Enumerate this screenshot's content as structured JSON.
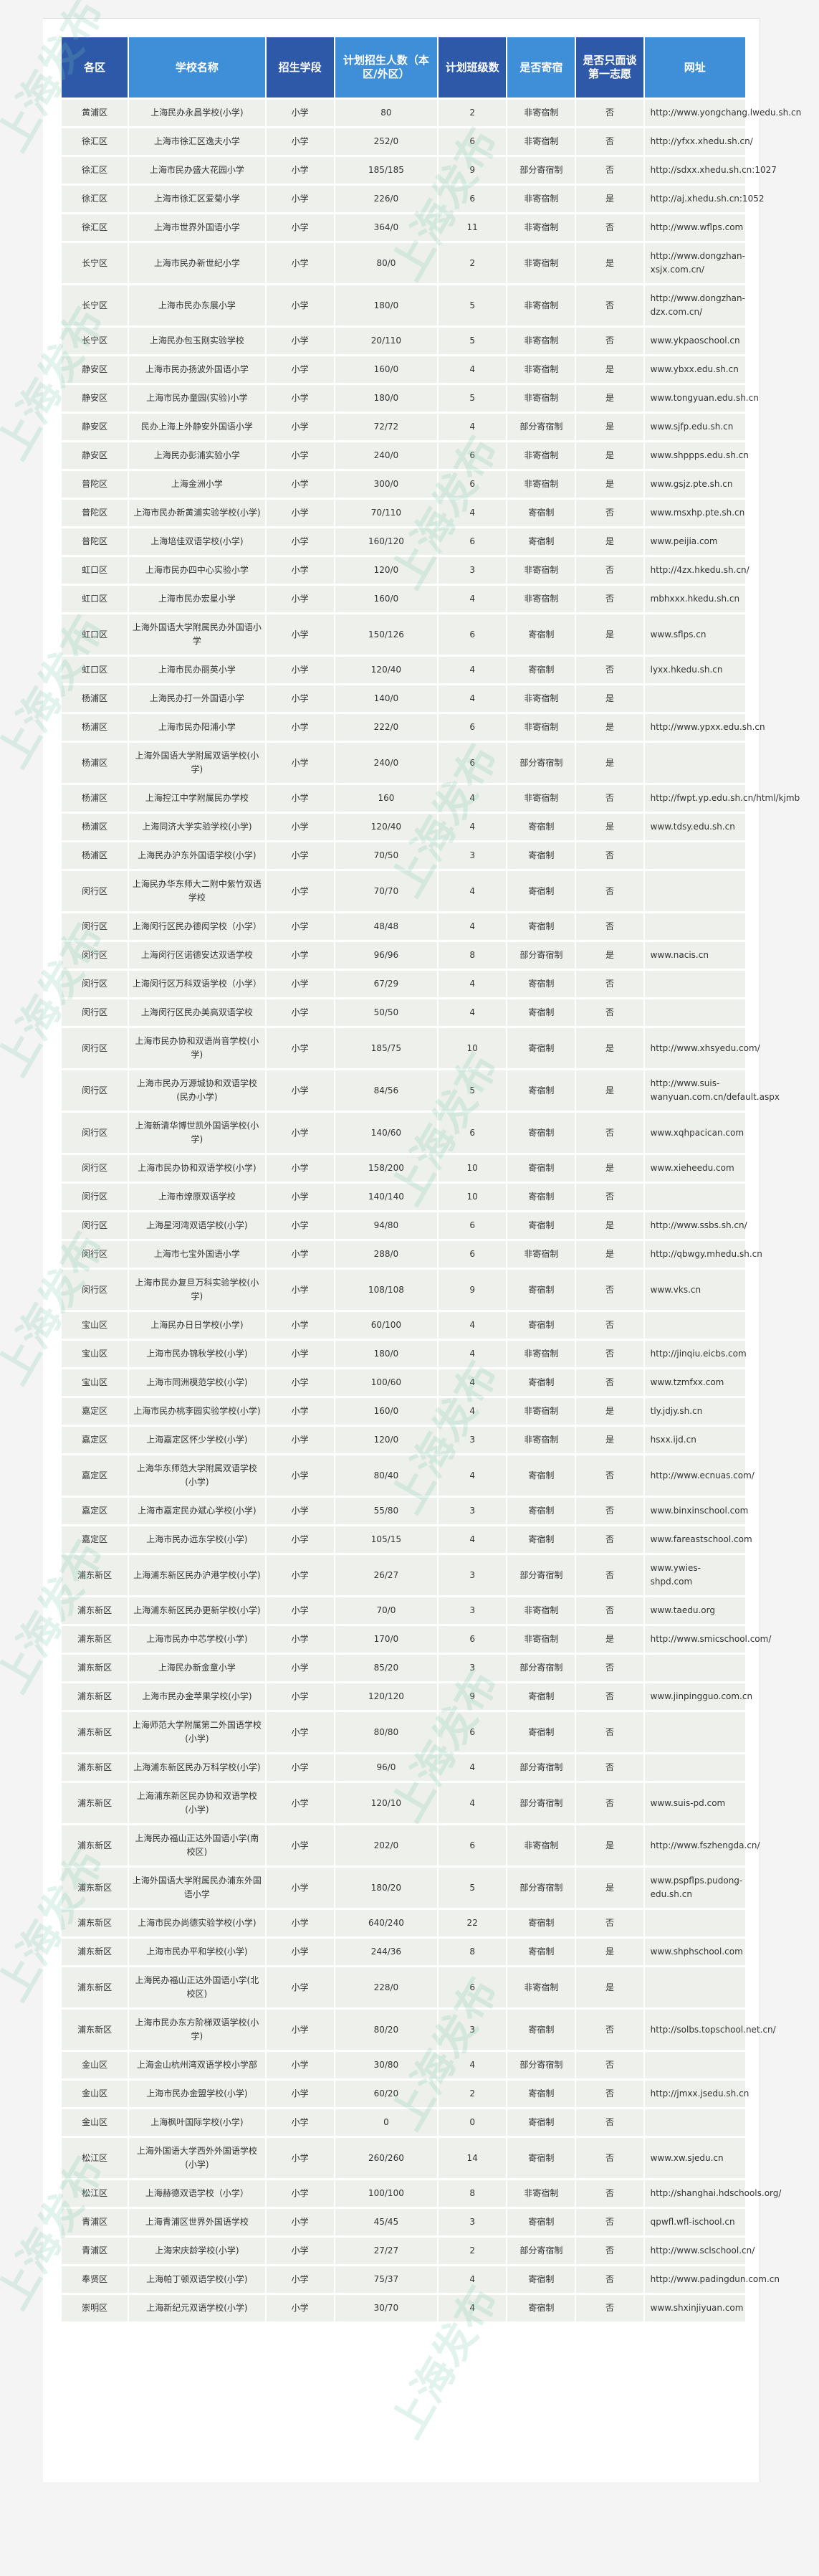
{
  "watermark": "上海发布",
  "colors": {
    "header_dark": "#2e58a8",
    "header_light": "#3e8ed8",
    "row_bg": "#eef0ec"
  },
  "table": {
    "headers": [
      "各区",
      "学校名称",
      "招生学段",
      "计划招生人数（本区/外区）",
      "计划班级数",
      "是否寄宿",
      "是否只面谈第一志愿",
      "网址"
    ],
    "rows": [
      [
        "黄浦区",
        "上海民办永昌学校(小学)",
        "小学",
        "80",
        "2",
        "非寄宿制",
        "否",
        "http://www.yongchang.lwedu.sh.cn"
      ],
      [
        "徐汇区",
        "上海市徐汇区逸夫小学",
        "小学",
        "252/0",
        "6",
        "非寄宿制",
        "否",
        "http://yfxx.xhedu.sh.cn/"
      ],
      [
        "徐汇区",
        "上海市民办盛大花园小学",
        "小学",
        "185/185",
        "9",
        "部分寄宿制",
        "否",
        "http://sdxx.xhedu.sh.cn:1027"
      ],
      [
        "徐汇区",
        "上海市徐汇区爱菊小学",
        "小学",
        "226/0",
        "6",
        "非寄宿制",
        "是",
        "http://aj.xhedu.sh.cn:1052"
      ],
      [
        "徐汇区",
        "上海市世界外国语小学",
        "小学",
        "364/0",
        "11",
        "非寄宿制",
        "否",
        "http://www.wflps.com"
      ],
      [
        "长宁区",
        "上海市民办新世纪小学",
        "小学",
        "80/0",
        "2",
        "非寄宿制",
        "是",
        "http://www.dongzhan-xsjx.com.cn/"
      ],
      [
        "长宁区",
        "上海市民办东展小学",
        "小学",
        "180/0",
        "5",
        "非寄宿制",
        "否",
        "http://www.dongzhan-dzx.com.cn/"
      ],
      [
        "长宁区",
        "上海民办包玉刚实验学校",
        "小学",
        "20/110",
        "5",
        "非寄宿制",
        "否",
        "www.ykpaoschool.cn"
      ],
      [
        "静安区",
        "上海市民办扬波外国语小学",
        "小学",
        "160/0",
        "4",
        "非寄宿制",
        "是",
        "www.ybxx.edu.sh.cn"
      ],
      [
        "静安区",
        "上海市民办童园(实验)小学",
        "小学",
        "180/0",
        "5",
        "非寄宿制",
        "是",
        "www.tongyuan.edu.sh.cn"
      ],
      [
        "静安区",
        "民办上海上外静安外国语小学",
        "小学",
        "72/72",
        "4",
        "部分寄宿制",
        "是",
        "www.sjfp.edu.sh.cn"
      ],
      [
        "静安区",
        "上海民办彭浦实验小学",
        "小学",
        "240/0",
        "6",
        "非寄宿制",
        "是",
        "www.shppps.edu.sh.cn"
      ],
      [
        "普陀区",
        "上海金洲小学",
        "小学",
        "300/0",
        "6",
        "非寄宿制",
        "是",
        "www.gsjz.pte.sh.cn"
      ],
      [
        "普陀区",
        "上海市民办新黄浦实验学校(小学)",
        "小学",
        "70/110",
        "4",
        "寄宿制",
        "否",
        "www.msxhp.pte.sh.cn"
      ],
      [
        "普陀区",
        "上海培佳双语学校(小学)",
        "小学",
        "160/120",
        "6",
        "寄宿制",
        "是",
        "www.peijia.com"
      ],
      [
        "虹口区",
        "上海市民办四中心实验小学",
        "小学",
        "120/0",
        "3",
        "非寄宿制",
        "否",
        "http://4zx.hkedu.sh.cn/"
      ],
      [
        "虹口区",
        "上海市民办宏星小学",
        "小学",
        "160/0",
        "4",
        "非寄宿制",
        "否",
        "mbhxxx.hkedu.sh.cn"
      ],
      [
        "虹口区",
        "上海外国语大学附属民办外国语小学",
        "小学",
        "150/126",
        "6",
        "寄宿制",
        "是",
        "www.sflps.cn"
      ],
      [
        "虹口区",
        "上海市民办丽英小学",
        "小学",
        "120/40",
        "4",
        "寄宿制",
        "否",
        "lyxx.hkedu.sh.cn"
      ],
      [
        "杨浦区",
        "上海民办打一外国语小学",
        "小学",
        "140/0",
        "4",
        "非寄宿制",
        "是",
        ""
      ],
      [
        "杨浦区",
        "上海市民办阳浦小学",
        "小学",
        "222/0",
        "6",
        "非寄宿制",
        "是",
        "http://www.ypxx.edu.sh.cn"
      ],
      [
        "杨浦区",
        "上海外国语大学附属双语学校(小学)",
        "小学",
        "240/0",
        "6",
        "部分寄宿制",
        "是",
        ""
      ],
      [
        "杨浦区",
        "上海控江中学附属民办学校",
        "小学",
        "160",
        "4",
        "非寄宿制",
        "否",
        "http://fwpt.yp.edu.sh.cn/html/kjmb"
      ],
      [
        "杨浦区",
        "上海同济大学实验学校(小学)",
        "小学",
        "120/40",
        "4",
        "寄宿制",
        "是",
        "www.tdsy.edu.sh.cn"
      ],
      [
        "杨浦区",
        "上海民办沪东外国语学校(小学)",
        "小学",
        "70/50",
        "3",
        "寄宿制",
        "否",
        ""
      ],
      [
        "闵行区",
        "上海民办华东师大二附中紫竹双语学校",
        "小学",
        "70/70",
        "4",
        "寄宿制",
        "否",
        ""
      ],
      [
        "闵行区",
        "上海闵行区民办德闳学校（小学）",
        "小学",
        "48/48",
        "4",
        "寄宿制",
        "否",
        ""
      ],
      [
        "闵行区",
        "上海闵行区诺德安达双语学校",
        "小学",
        "96/96",
        "8",
        "部分寄宿制",
        "是",
        "www.nacis.cn"
      ],
      [
        "闵行区",
        "上海闵行区万科双语学校（小学）",
        "小学",
        "67/29",
        "4",
        "寄宿制",
        "否",
        ""
      ],
      [
        "闵行区",
        "上海闵行区民办美高双语学校",
        "小学",
        "50/50",
        "4",
        "寄宿制",
        "否",
        ""
      ],
      [
        "闵行区",
        "上海市民办协和双语尚音学校(小学)",
        "小学",
        "185/75",
        "10",
        "寄宿制",
        "是",
        "http://www.xhsyedu.com/"
      ],
      [
        "闵行区",
        "上海市民办万源城协和双语学校(民办小学)",
        "小学",
        "84/56",
        "5",
        "寄宿制",
        "是",
        "http://www.suis-wanyuan.com.cn/default.aspx"
      ],
      [
        "闵行区",
        "上海新清华博世凯外国语学校(小学)",
        "小学",
        "140/60",
        "6",
        "寄宿制",
        "否",
        "www.xqhpacican.com"
      ],
      [
        "闵行区",
        "上海市民办协和双语学校(小学)",
        "小学",
        "158/200",
        "10",
        "寄宿制",
        "是",
        "www.xieheedu.com"
      ],
      [
        "闵行区",
        "上海市燎原双语学校",
        "小学",
        "140/140",
        "10",
        "寄宿制",
        "否",
        ""
      ],
      [
        "闵行区",
        "上海星河湾双语学校(小学)",
        "小学",
        "94/80",
        "6",
        "寄宿制",
        "是",
        "http://www.ssbs.sh.cn/"
      ],
      [
        "闵行区",
        "上海市七宝外国语小学",
        "小学",
        "288/0",
        "6",
        "非寄宿制",
        "是",
        "http://qbwgy.mhedu.sh.cn"
      ],
      [
        "闵行区",
        "上海市民办复旦万科实验学校(小学)",
        "小学",
        "108/108",
        "9",
        "寄宿制",
        "否",
        "www.vks.cn"
      ],
      [
        "宝山区",
        "上海民办日日学校(小学)",
        "小学",
        "60/100",
        "4",
        "寄宿制",
        "否",
        ""
      ],
      [
        "宝山区",
        "上海市民办锦秋学校(小学)",
        "小学",
        "180/0",
        "4",
        "非寄宿制",
        "否",
        "http://jinqiu.eicbs.com"
      ],
      [
        "宝山区",
        "上海市同洲模范学校(小学)",
        "小学",
        "100/60",
        "4",
        "寄宿制",
        "否",
        "www.tzmfxx.com"
      ],
      [
        "嘉定区",
        "上海市民办桃李园实验学校(小学)",
        "小学",
        "160/0",
        "4",
        "非寄宿制",
        "是",
        "tly.jdjy.sh.cn"
      ],
      [
        "嘉定区",
        "上海嘉定区怀少学校(小学)",
        "小学",
        "120/0",
        "3",
        "非寄宿制",
        "是",
        "hsxx.ijd.cn"
      ],
      [
        "嘉定区",
        "上海华东师范大学附属双语学校(小学)",
        "小学",
        "80/40",
        "4",
        "寄宿制",
        "否",
        "http://www.ecnuas.com/"
      ],
      [
        "嘉定区",
        "上海市嘉定民办斌心学校(小学)",
        "小学",
        "55/80",
        "3",
        "寄宿制",
        "否",
        "www.binxinschool.com"
      ],
      [
        "嘉定区",
        "上海市民办远东学校(小学)",
        "小学",
        "105/15",
        "4",
        "寄宿制",
        "否",
        "www.fareastschool.com"
      ],
      [
        "浦东新区",
        "上海浦东新区民办沪港学校(小学)",
        "小学",
        "26/27",
        "3",
        "部分寄宿制",
        "否",
        "www.ywies-shpd.com"
      ],
      [
        "浦东新区",
        "上海浦东新区民办更新学校(小学)",
        "小学",
        "70/0",
        "3",
        "非寄宿制",
        "否",
        "www.taedu.org"
      ],
      [
        "浦东新区",
        "上海市民办中芯学校(小学)",
        "小学",
        "170/0",
        "6",
        "非寄宿制",
        "是",
        "http://www.smicschool.com/"
      ],
      [
        "浦东新区",
        "上海民办新金童小学",
        "小学",
        "85/20",
        "3",
        "部分寄宿制",
        "否",
        ""
      ],
      [
        "浦东新区",
        "上海市民办金苹果学校(小学)",
        "小学",
        "120/120",
        "9",
        "寄宿制",
        "否",
        "www.jinpingguo.com.cn"
      ],
      [
        "浦东新区",
        "上海师范大学附属第二外国语学校(小学)",
        "小学",
        "80/80",
        "6",
        "寄宿制",
        "否",
        ""
      ],
      [
        "浦东新区",
        "上海浦东新区民办万科学校(小学)",
        "小学",
        "96/0",
        "4",
        "部分寄宿制",
        "否",
        ""
      ],
      [
        "浦东新区",
        "上海浦东新区民办协和双语学校(小学)",
        "小学",
        "120/10",
        "4",
        "部分寄宿制",
        "否",
        "www.suis-pd.com"
      ],
      [
        "浦东新区",
        "上海民办福山正达外国语小学(南校区)",
        "小学",
        "202/0",
        "6",
        "非寄宿制",
        "是",
        "http://www.fszhengda.cn/"
      ],
      [
        "浦东新区",
        "上海外国语大学附属民办浦东外国语小学",
        "小学",
        "180/20",
        "5",
        "部分寄宿制",
        "是",
        "www.pspflps.pudong-edu.sh.cn"
      ],
      [
        "浦东新区",
        "上海市民办尚德实验学校(小学)",
        "小学",
        "640/240",
        "22",
        "寄宿制",
        "否",
        ""
      ],
      [
        "浦东新区",
        "上海市民办平和学校(小学)",
        "小学",
        "244/36",
        "8",
        "寄宿制",
        "是",
        "www.shphschool.com"
      ],
      [
        "浦东新区",
        "上海民办福山正达外国语小学(北校区)",
        "小学",
        "228/0",
        "6",
        "非寄宿制",
        "是",
        ""
      ],
      [
        "浦东新区",
        "上海市民办东方阶梯双语学校(小学)",
        "小学",
        "80/20",
        "3",
        "寄宿制",
        "否",
        "http://solbs.topschool.net.cn/"
      ],
      [
        "金山区",
        "上海金山杭州湾双语学校小学部",
        "小学",
        "30/80",
        "4",
        "部分寄宿制",
        "否",
        ""
      ],
      [
        "金山区",
        "上海市民办金盟学校(小学)",
        "小学",
        "60/20",
        "2",
        "寄宿制",
        "否",
        "http://jmxx.jsedu.sh.cn"
      ],
      [
        "金山区",
        "上海枫叶国际学校(小学)",
        "小学",
        "0",
        "0",
        "寄宿制",
        "否",
        ""
      ],
      [
        "松江区",
        "上海外国语大学西外外国语学校(小学)",
        "小学",
        "260/260",
        "14",
        "寄宿制",
        "否",
        "www.xw.sjedu.cn"
      ],
      [
        "松江区",
        "上海赫德双语学校（小学）",
        "小学",
        "100/100",
        "8",
        "非寄宿制",
        "否",
        "http://shanghai.hdschools.org/"
      ],
      [
        "青浦区",
        "上海青浦区世界外国语学校",
        "小学",
        "45/45",
        "3",
        "寄宿制",
        "否",
        "qpwfl.wfl-ischool.cn"
      ],
      [
        "青浦区",
        "上海宋庆龄学校(小学)",
        "小学",
        "27/27",
        "2",
        "部分寄宿制",
        "否",
        "http://www.sclschool.cn/"
      ],
      [
        "奉贤区",
        "上海帕丁顿双语学校(小学)",
        "小学",
        "75/37",
        "4",
        "寄宿制",
        "否",
        "http://www.padingdun.com.cn"
      ],
      [
        "崇明区",
        "上海新纪元双语学校(小学)",
        "小学",
        "30/70",
        "4",
        "寄宿制",
        "否",
        "www.shxinjiyuan.com"
      ]
    ]
  }
}
